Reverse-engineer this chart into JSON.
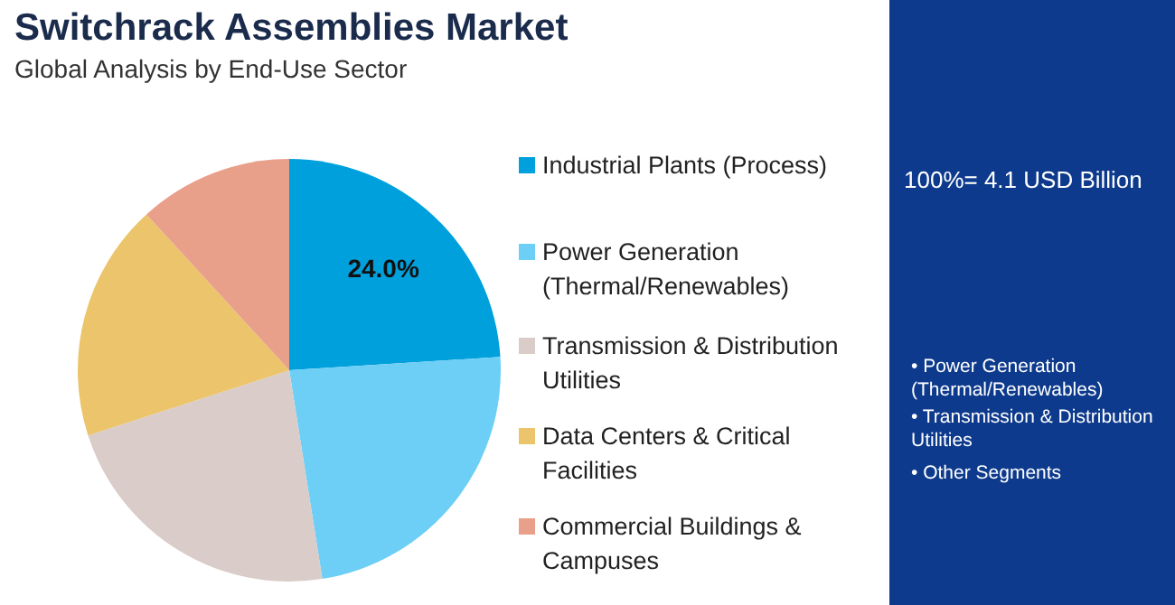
{
  "chart_data": {
    "type": "pie",
    "title": "Switchrack Assemblies Market",
    "subtitle": "Global Analysis by End-Use Sector",
    "categories": [
      "Industrial Plants (Process)",
      "Power Generation (Thermal/Renewables)",
      "Transmission & Distribution Utilities",
      "Data Centers & Critical Facilities",
      "Commercial Buildings & Campuses"
    ],
    "values": [
      24.0,
      23.5,
      22.5,
      18.2,
      11.8
    ],
    "colors": [
      "#00a0dc",
      "#6dcff6",
      "#d9ccc9",
      "#ebc46b",
      "#e9a08a"
    ],
    "value_labels": [
      "24.0%",
      null,
      null,
      null,
      null
    ],
    "legend": "right",
    "annotations": [
      "100%= 4.1 USD Billion",
      "• Power Generation (Thermal/Renewables)",
      "• Transmission & Distribution Utilities",
      "• Other Segments"
    ]
  }
}
